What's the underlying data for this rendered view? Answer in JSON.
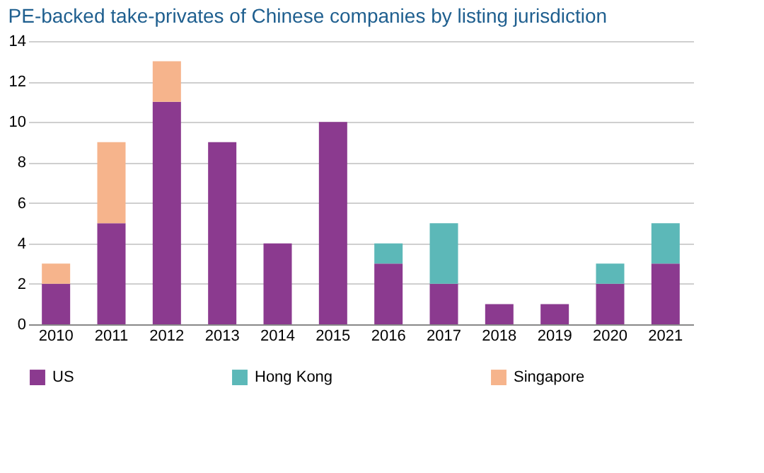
{
  "chart_data": {
    "type": "bar",
    "title": "PE-backed take-privates of Chinese companies by listing jurisdiction",
    "categories": [
      "2010",
      "2011",
      "2012",
      "2013",
      "2014",
      "2015",
      "2016",
      "2017",
      "2018",
      "2019",
      "2020",
      "2021"
    ],
    "stacked": true,
    "ylim": [
      0,
      14
    ],
    "yticks": [
      0,
      2,
      4,
      6,
      8,
      10,
      12,
      14
    ],
    "grid": "y",
    "legend": "bottom",
    "series": [
      {
        "name": "US",
        "color": "#8b3a8f",
        "values": [
          2,
          5,
          11,
          9,
          4,
          10,
          3,
          2,
          1,
          1,
          2,
          3
        ]
      },
      {
        "name": "Hong Kong",
        "color": "#5cb8b8",
        "values": [
          null,
          null,
          null,
          null,
          null,
          null,
          1,
          3,
          null,
          null,
          1,
          2
        ]
      },
      {
        "name": "Singapore",
        "color": "#f6b48c",
        "values": [
          1,
          4,
          2,
          null,
          null,
          null,
          null,
          null,
          null,
          null,
          null,
          null
        ]
      }
    ]
  }
}
